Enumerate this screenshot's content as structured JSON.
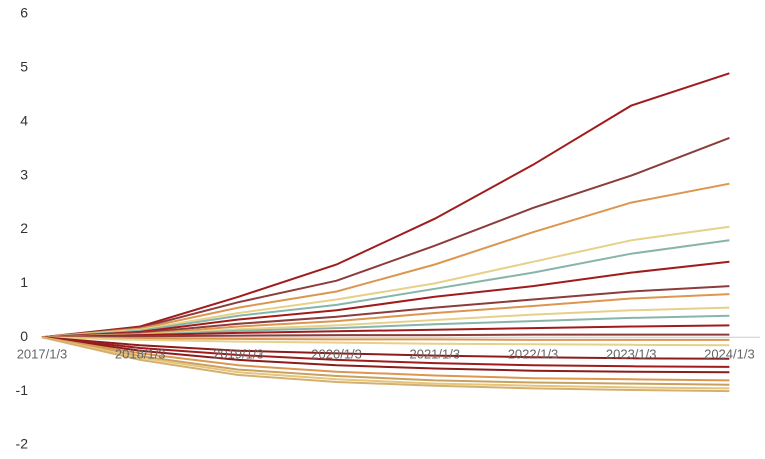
{
  "chart_data": {
    "type": "line",
    "categories": [
      "2017/1/3",
      "2018/1/3",
      "2019/1/3",
      "2020/1/3",
      "2021/1/3",
      "2022/1/3",
      "2023/1/3",
      "2024/1/3"
    ],
    "ylim": [
      -2,
      6
    ],
    "yticks": [
      -2,
      -1,
      0,
      1,
      2,
      3,
      4,
      5,
      6
    ],
    "series": [
      {
        "color": "#a01c1c",
        "values": [
          0,
          0.2,
          0.75,
          1.35,
          2.2,
          3.2,
          4.3,
          4.9
        ]
      },
      {
        "color": "#8b3c3c",
        "values": [
          0,
          0.18,
          0.65,
          1.05,
          1.7,
          2.4,
          3.0,
          3.7
        ]
      },
      {
        "color": "#dc9650",
        "values": [
          0,
          0.16,
          0.55,
          0.85,
          1.35,
          1.95,
          2.5,
          2.85
        ]
      },
      {
        "color": "#e6d08a",
        "values": [
          0,
          0.14,
          0.45,
          0.7,
          1.0,
          1.4,
          1.8,
          2.05
        ]
      },
      {
        "color": "#86b5aa",
        "values": [
          0,
          0.12,
          0.4,
          0.6,
          0.9,
          1.2,
          1.55,
          1.8
        ]
      },
      {
        "color": "#a01c1c",
        "values": [
          0,
          0.1,
          0.33,
          0.5,
          0.75,
          0.95,
          1.2,
          1.4
        ]
      },
      {
        "color": "#8b3c3c",
        "values": [
          0,
          0.08,
          0.25,
          0.38,
          0.55,
          0.7,
          0.85,
          0.95
        ]
      },
      {
        "color": "#dc9650",
        "values": [
          0,
          0.06,
          0.2,
          0.3,
          0.45,
          0.58,
          0.72,
          0.8
        ]
      },
      {
        "color": "#e6d08a",
        "values": [
          0,
          0.05,
          0.15,
          0.22,
          0.32,
          0.42,
          0.5,
          0.55
        ]
      },
      {
        "color": "#86b5aa",
        "values": [
          0,
          0.04,
          0.12,
          0.17,
          0.24,
          0.3,
          0.36,
          0.4
        ]
      },
      {
        "color": "#a01c1c",
        "values": [
          0,
          0.04,
          0.08,
          0.11,
          0.14,
          0.17,
          0.2,
          0.22
        ]
      },
      {
        "color": "#8b3c3c",
        "values": [
          0,
          0.02,
          0.03,
          0.04,
          0.04,
          0.05,
          0.05,
          0.05
        ]
      },
      {
        "color": "#dc9650",
        "values": [
          0,
          -0.02,
          -0.03,
          -0.04,
          -0.04,
          -0.05,
          -0.05,
          -0.05
        ]
      },
      {
        "color": "#e6d08a",
        "values": [
          0,
          -0.05,
          -0.08,
          -0.1,
          -0.12,
          -0.13,
          -0.14,
          -0.15
        ]
      },
      {
        "color": "#8b1c1c",
        "values": [
          0,
          -0.15,
          -0.25,
          -0.3,
          -0.34,
          -0.37,
          -0.39,
          -0.4
        ]
      },
      {
        "color": "#a01c1c",
        "values": [
          0,
          -0.2,
          -0.33,
          -0.42,
          -0.48,
          -0.52,
          -0.54,
          -0.55
        ]
      },
      {
        "color": "#8b1c1c",
        "values": [
          0,
          -0.25,
          -0.42,
          -0.52,
          -0.58,
          -0.62,
          -0.64,
          -0.65
        ]
      },
      {
        "color": "#dc9650",
        "values": [
          0,
          -0.3,
          -0.52,
          -0.64,
          -0.71,
          -0.76,
          -0.78,
          -0.8
        ]
      },
      {
        "color": "#c8a060",
        "values": [
          0,
          -0.35,
          -0.6,
          -0.72,
          -0.8,
          -0.84,
          -0.86,
          -0.88
        ]
      },
      {
        "color": "#e6c47a",
        "values": [
          0,
          -0.38,
          -0.65,
          -0.78,
          -0.86,
          -0.9,
          -0.93,
          -0.95
        ]
      },
      {
        "color": "#d4b070",
        "values": [
          0,
          -0.42,
          -0.7,
          -0.83,
          -0.9,
          -0.95,
          -0.98,
          -1.0
        ]
      }
    ]
  }
}
